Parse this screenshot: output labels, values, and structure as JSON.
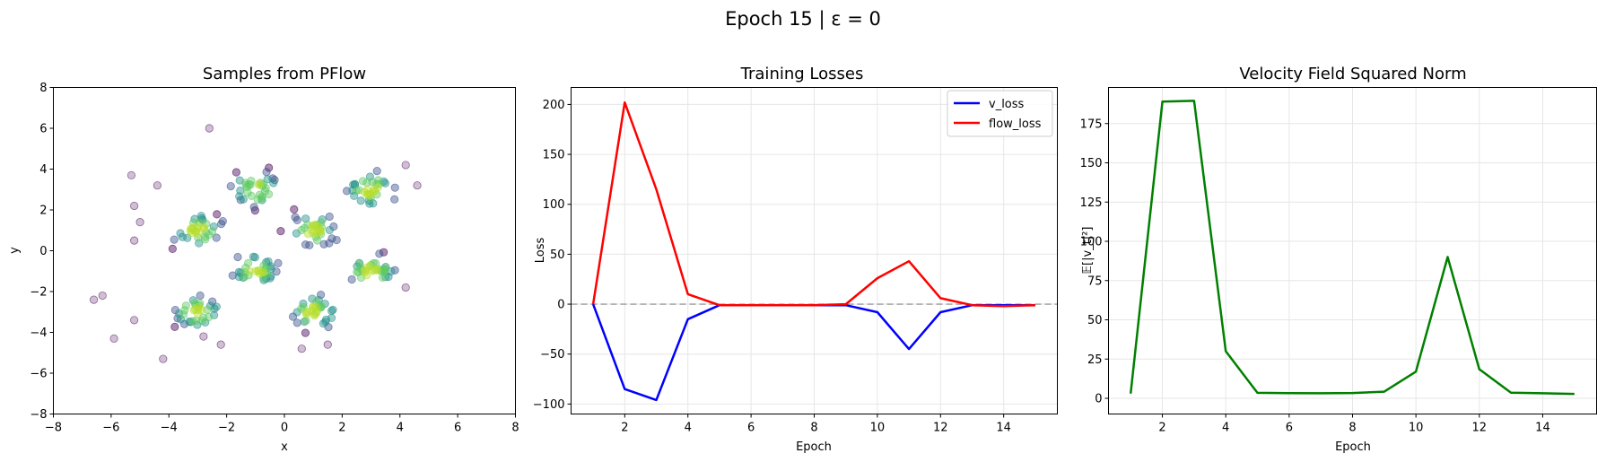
{
  "suptitle": "Epoch 15 | ε = 0",
  "chart_data": [
    {
      "type": "scatter",
      "title": "Samples from PFlow",
      "xlabel": "x",
      "ylabel": "y",
      "xlim": [
        -8,
        8
      ],
      "ylim": [
        -8,
        8
      ],
      "xticks": [
        "−8",
        "−6",
        "−4",
        "−2",
        "0",
        "2",
        "4",
        "6",
        "8"
      ],
      "yticks": [
        "−8",
        "−6",
        "−4",
        "−2",
        "0",
        "2",
        "4",
        "6",
        "8"
      ],
      "grid": false,
      "colormap": "viridis",
      "clusters": [
        {
          "x": [
            -4,
            -2
          ],
          "y": [
            0,
            2
          ]
        },
        {
          "x": [
            -2,
            0
          ],
          "y": [
            2,
            4
          ]
        },
        {
          "x": [
            -2,
            0
          ],
          "y": [
            -2,
            0
          ]
        },
        {
          "x": [
            -4,
            -2
          ],
          "y": [
            -4,
            -2
          ]
        },
        {
          "x": [
            0,
            2
          ],
          "y": [
            0,
            2
          ]
        },
        {
          "x": [
            0,
            2
          ],
          "y": [
            -4,
            -2
          ]
        },
        {
          "x": [
            2,
            4
          ],
          "y": [
            2,
            4
          ]
        },
        {
          "x": [
            2,
            4
          ],
          "y": [
            -2,
            0
          ]
        }
      ],
      "outliers": [
        [
          -2.6,
          6.0
        ],
        [
          -5.3,
          3.7
        ],
        [
          -4.4,
          3.2
        ],
        [
          -5.2,
          2.2
        ],
        [
          -5.0,
          1.4
        ],
        [
          -5.2,
          0.5
        ],
        [
          -6.6,
          -2.4
        ],
        [
          -6.3,
          -2.2
        ],
        [
          -5.9,
          -4.3
        ],
        [
          -5.2,
          -3.4
        ],
        [
          -4.2,
          -5.3
        ],
        [
          -2.2,
          -4.6
        ],
        [
          -2.8,
          -4.2
        ],
        [
          1.5,
          -4.6
        ],
        [
          0.6,
          -4.8
        ],
        [
          4.6,
          3.2
        ],
        [
          4.2,
          4.2
        ],
        [
          4.2,
          -1.8
        ]
      ]
    },
    {
      "type": "line",
      "title": "Training Losses",
      "xlabel": "Epoch",
      "ylabel": "Loss",
      "xlim": [
        0.3,
        15.7
      ],
      "ylim": [
        -110,
        217
      ],
      "xticks": [
        "2",
        "4",
        "6",
        "8",
        "10",
        "12",
        "14"
      ],
      "yticks": [
        "−100",
        "−50",
        "0",
        "50",
        "100",
        "150",
        "200"
      ],
      "grid": true,
      "hline": 0,
      "legend_position": "upper right",
      "x": [
        1,
        2,
        3,
        4,
        5,
        6,
        7,
        8,
        9,
        10,
        11,
        12,
        13,
        14,
        15
      ],
      "series": [
        {
          "name": "v_loss",
          "color": "#0000ff",
          "values": [
            0,
            -85,
            -96,
            -15,
            -1,
            -1,
            -1,
            -1,
            -1,
            -8,
            -45,
            -8,
            -1,
            -1,
            -1
          ]
        },
        {
          "name": "flow_loss",
          "color": "#ff0000",
          "values": [
            0,
            202,
            115,
            10,
            -1,
            -1,
            -1,
            -1,
            0,
            26,
            43,
            6,
            -1,
            -2,
            -1
          ]
        }
      ]
    },
    {
      "type": "line",
      "title": "Velocity Field Squared Norm",
      "xlabel": "Epoch",
      "ylabel": "𝔼[|v_t|²]",
      "xlim": [
        0.3,
        15.7
      ],
      "ylim": [
        -10,
        198
      ],
      "xticks": [
        "2",
        "4",
        "6",
        "8",
        "10",
        "12",
        "14"
      ],
      "yticks": [
        "0",
        "25",
        "50",
        "75",
        "100",
        "125",
        "150",
        "175"
      ],
      "grid": true,
      "x": [
        1,
        2,
        3,
        4,
        5,
        6,
        7,
        8,
        9,
        10,
        11,
        12,
        13,
        14,
        15
      ],
      "series": [
        {
          "color": "#008000",
          "values": [
            3,
            189,
            189.5,
            30,
            3.5,
            3.3,
            3.2,
            3.4,
            4.2,
            17,
            90,
            18.5,
            3.6,
            3.2,
            2.8
          ]
        }
      ]
    }
  ]
}
